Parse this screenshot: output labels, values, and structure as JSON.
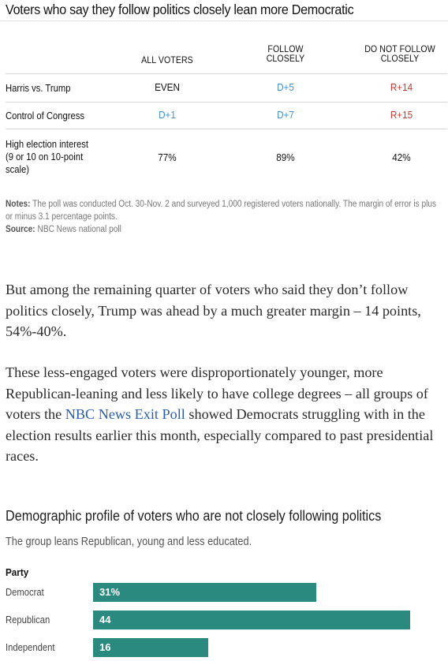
{
  "table1": {
    "title": "Voters who say they follow politics closely lean more Democratic",
    "headers": [
      "ALL VOTERS",
      "FOLLOW CLOSELY",
      "DO NOT FOLLOW CLOSELY"
    ],
    "header_lines": {
      "all": "ALL VOTERS",
      "follow_1": "FOLLOW",
      "follow_2": "CLOSELY",
      "notfollow_1": "DO NOT FOLLOW",
      "notfollow_2": "CLOSELY"
    },
    "rows": [
      {
        "label": "Harris vs. Trump",
        "all": "EVEN",
        "follow": "D+5",
        "notfollow": "R+14"
      },
      {
        "label": "Control of Congress",
        "all": "D+1",
        "follow": "D+7",
        "notfollow": "R+15"
      },
      {
        "label_lines": [
          "High election interest",
          "(9 or 10 on 10-point",
          "scale)"
        ],
        "all": "77%",
        "follow": "89%",
        "notfollow": "42%"
      }
    ],
    "notes_label": "Notes:",
    "notes_text": "The poll was conducted Oct. 30-Nov. 2 and surveyed 1,000 registered voters nationally. The margin of error is plus",
    "notes_text_2": "or minus 3.1 percentage points.",
    "source_label": "Source:",
    "source_text": "NBC News national poll",
    "colors": {
      "democrat": "#3a8fd6",
      "republican": "#c0392b"
    }
  },
  "article": {
    "para1": "But among the remaining quarter of voters who said they don’t follow politics closely, Trump was ahead by a much greater margin – 14 points, 54%-40%.",
    "para2_before": "These less-engaged voters were disproportionately younger, more Republican-leaning and less likely to have college degrees – all groups of voters the ",
    "para2_link": "NBC News Exit Poll",
    "para2_after": " showed Democrats struggling with in the election results earlier this month, especially compared to past presidential races."
  },
  "chart2": {
    "title": "Demographic profile of voters who are not closely following politics",
    "subtitle": "The group leans Republican, young and less educated.",
    "group_label": "Party",
    "bar_color": "#2b8a7f"
  },
  "chart_data": {
    "type": "bar",
    "categories": [
      "Democrat",
      "Republican",
      "Independent"
    ],
    "values": [
      31,
      44,
      16
    ],
    "value_labels": [
      "31%",
      "44",
      "16"
    ],
    "title": "Demographic profile of voters who are not closely following politics",
    "subtitle": "The group leans Republican, young and less educated.",
    "xlim": [
      0,
      46
    ]
  }
}
